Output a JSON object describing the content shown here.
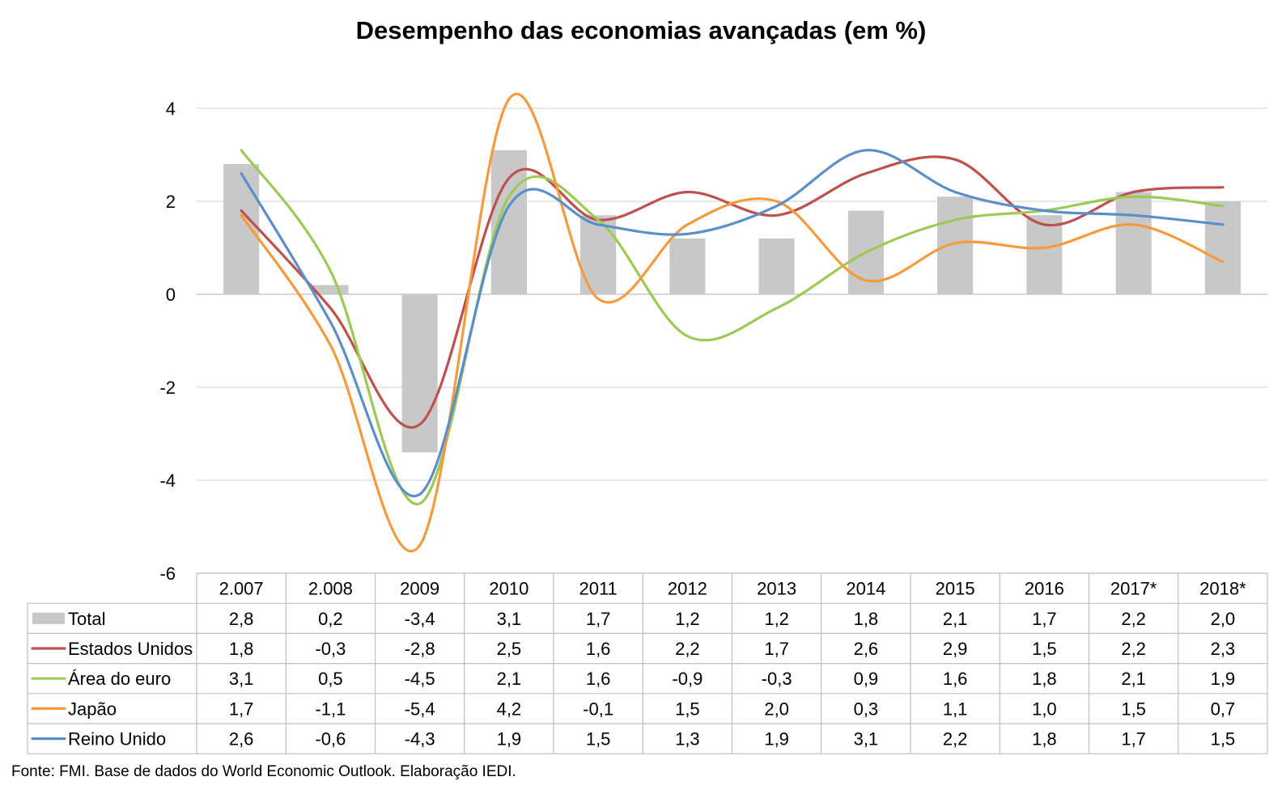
{
  "chart_data": {
    "type": "line",
    "title": "Desempenho das economias avançadas (em %)",
    "categories": [
      "2.007",
      "2.008",
      "2009",
      "2010",
      "2011",
      "2012",
      "2013",
      "2014",
      "2015",
      "2016",
      "2017*",
      "2018*"
    ],
    "ylim": [
      -6,
      4
    ],
    "yticks": [
      4,
      2,
      0,
      -2,
      -4,
      -6
    ],
    "grid": true,
    "legend": "data-table",
    "bar_series": {
      "name": "Total",
      "color": "#c8c8c8",
      "values": [
        2.8,
        0.2,
        -3.4,
        3.1,
        1.7,
        1.2,
        1.2,
        1.8,
        2.1,
        1.7,
        2.2,
        2.0
      ],
      "labels": [
        "2,8",
        "0,2",
        "-3,4",
        "3,1",
        "1,7",
        "1,2",
        "1,2",
        "1,8",
        "2,1",
        "1,7",
        "2,2",
        "2,0"
      ]
    },
    "series": [
      {
        "name": "Estados Unidos",
        "color": "#c0504d",
        "values": [
          1.8,
          -0.3,
          -2.8,
          2.5,
          1.6,
          2.2,
          1.7,
          2.6,
          2.9,
          1.5,
          2.2,
          2.3
        ],
        "labels": [
          "1,8",
          "-0,3",
          "-2,8",
          "2,5",
          "1,6",
          "2,2",
          "1,7",
          "2,6",
          "2,9",
          "1,5",
          "2,2",
          "2,3"
        ]
      },
      {
        "name": "Área do euro",
        "color": "#9bcb55",
        "values": [
          3.1,
          0.5,
          -4.5,
          2.1,
          1.6,
          -0.9,
          -0.3,
          0.9,
          1.6,
          1.8,
          2.1,
          1.9
        ],
        "labels": [
          "3,1",
          "0,5",
          "-4,5",
          "2,1",
          "1,6",
          "-0,9",
          "-0,3",
          "0,9",
          "1,6",
          "1,8",
          "2,1",
          "1,9"
        ]
      },
      {
        "name": "Japão",
        "color": "#f79a3c",
        "values": [
          1.7,
          -1.1,
          -5.4,
          4.2,
          -0.1,
          1.5,
          2.0,
          0.3,
          1.1,
          1.0,
          1.5,
          0.7
        ],
        "labels": [
          "1,7",
          "-1,1",
          "-5,4",
          "4,2",
          "-0,1",
          "1,5",
          "2,0",
          "0,3",
          "1,1",
          "1,0",
          "1,5",
          "0,7"
        ]
      },
      {
        "name": "Reino Unido",
        "color": "#5b8fcc",
        "values": [
          2.6,
          -0.6,
          -4.3,
          1.9,
          1.5,
          1.3,
          1.9,
          3.1,
          2.2,
          1.8,
          1.7,
          1.5
        ],
        "labels": [
          "2,6",
          "-0,6",
          "-4,3",
          "1,9",
          "1,5",
          "1,3",
          "1,9",
          "3,1",
          "2,2",
          "1,8",
          "1,7",
          "1,5"
        ]
      }
    ]
  },
  "source_note": "Fonte: FMI. Base de dados do World Economic Outlook. Elaboração IEDI."
}
